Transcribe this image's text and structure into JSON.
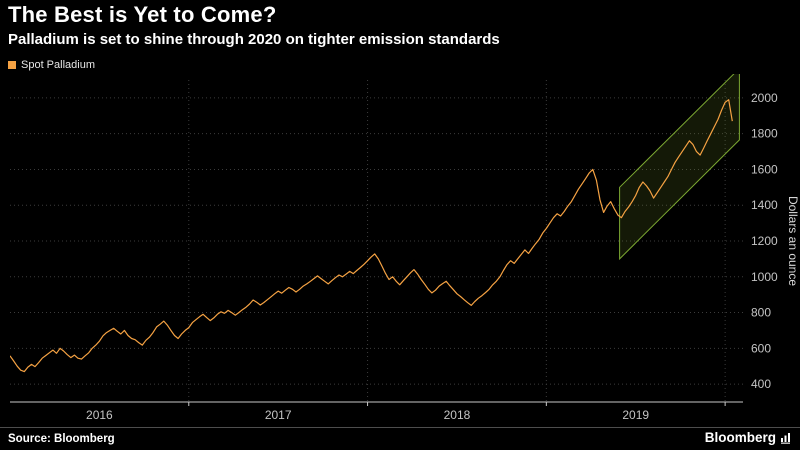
{
  "header": {
    "title": "The Best is Yet to Come?",
    "subtitle": "Palladium is set to shine through 2020 on tighter emission standards"
  },
  "legend": {
    "label": "Spot Palladium",
    "swatch_color": "#f5a243"
  },
  "footer": {
    "source": "Source: Bloomberg",
    "brand": "Bloomberg"
  },
  "chart_data": {
    "type": "line",
    "title": "The Best is Yet to Come?",
    "subtitle": "Palladium is set to shine through 2020 on tighter emission standards",
    "xlabel": "",
    "ylabel": "Dollars an ounce",
    "background": "#000000",
    "grid": "dotted",
    "legend_position": "top-left",
    "xlim": [
      2016.0,
      2020.1
    ],
    "ylim": [
      300,
      2100
    ],
    "y_ticks": [
      400,
      600,
      800,
      1000,
      1200,
      1400,
      1600,
      1800,
      2000
    ],
    "x_gridlines": [
      2017,
      2018,
      2019,
      2020
    ],
    "x_ticks": [
      {
        "label": "2016",
        "center": 2016.5
      },
      {
        "label": "2017",
        "center": 2017.5
      },
      {
        "label": "2018",
        "center": 2018.5
      },
      {
        "label": "2019",
        "center": 2019.5
      }
    ],
    "series": [
      {
        "name": "Spot Palladium",
        "color": "#f5a243",
        "x_start": 2016.0,
        "x_step": 0.02,
        "values": [
          558,
          530,
          500,
          478,
          470,
          495,
          510,
          498,
          520,
          545,
          560,
          575,
          590,
          572,
          600,
          585,
          565,
          548,
          562,
          545,
          540,
          558,
          575,
          600,
          618,
          640,
          670,
          688,
          700,
          712,
          695,
          680,
          700,
          672,
          655,
          648,
          632,
          618,
          645,
          662,
          688,
          720,
          735,
          752,
          730,
          700,
          672,
          655,
          680,
          700,
          716,
          744,
          760,
          776,
          790,
          772,
          755,
          770,
          790,
          804,
          796,
          812,
          800,
          785,
          800,
          816,
          830,
          848,
          870,
          858,
          842,
          856,
          872,
          888,
          905,
          920,
          908,
          925,
          940,
          930,
          915,
          930,
          948,
          960,
          975,
          990,
          1005,
          990,
          975,
          960,
          978,
          995,
          1010,
          1000,
          1015,
          1030,
          1018,
          1035,
          1052,
          1070,
          1090,
          1110,
          1128,
          1100,
          1060,
          1020,
          985,
          1000,
          975,
          955,
          978,
          1000,
          1022,
          1040,
          1015,
          985,
          958,
          930,
          910,
          925,
          948,
          962,
          975,
          950,
          928,
          905,
          890,
          872,
          855,
          840,
          862,
          880,
          895,
          912,
          930,
          955,
          975,
          1000,
          1035,
          1068,
          1090,
          1075,
          1100,
          1125,
          1150,
          1130,
          1158,
          1185,
          1210,
          1245,
          1270,
          1300,
          1330,
          1352,
          1340,
          1365,
          1395,
          1420,
          1455,
          1490,
          1520,
          1550,
          1580,
          1600,
          1540,
          1430,
          1360,
          1395,
          1420,
          1380,
          1345,
          1330,
          1365,
          1390,
          1420,
          1455,
          1500,
          1530,
          1508,
          1480,
          1440,
          1470,
          1500,
          1530,
          1560,
          1600,
          1640,
          1670,
          1700,
          1730,
          1760,
          1740,
          1700,
          1680,
          1720,
          1760,
          1800,
          1840,
          1880,
          1930,
          1975,
          1990,
          1870
        ]
      }
    ],
    "annotations": {
      "trend_channel": {
        "x": [
          2019.41,
          2020.08
        ],
        "lower": [
          1100,
          1765
        ],
        "upper": [
          1500,
          2165
        ],
        "stroke_color": "#7ca832"
      }
    }
  }
}
